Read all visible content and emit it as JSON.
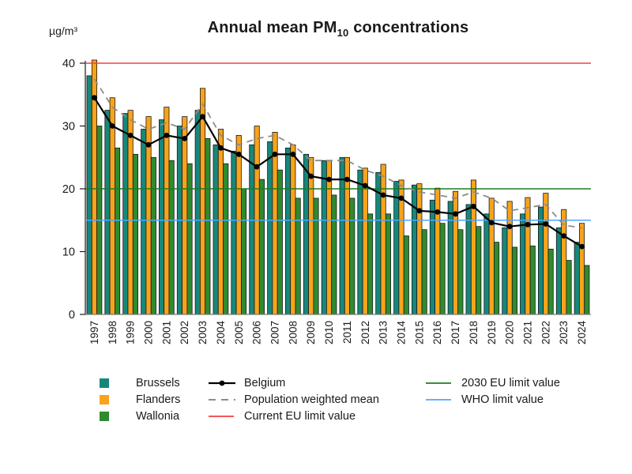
{
  "chart_data": {
    "type": "bar",
    "title": {
      "prefix": "Annual mean PM",
      "subscript": "10",
      "suffix": " concentrations"
    },
    "unit_label": "µg/m³",
    "ylim": [
      0,
      40
    ],
    "yticks": [
      0,
      10,
      20,
      30,
      40
    ],
    "grid": false,
    "legend_position": "bottom",
    "categories": [
      "1997",
      "1998",
      "1999",
      "2000",
      "2001",
      "2002",
      "2003",
      "2004",
      "2005",
      "2006",
      "2007",
      "2008",
      "2009",
      "2010",
      "2011",
      "2012",
      "2013",
      "2014",
      "2015",
      "2016",
      "2017",
      "2018",
      "2019",
      "2020",
      "2021",
      "2022",
      "2023",
      "2024"
    ],
    "series": [
      {
        "name": "Brussels",
        "color": "#17877B",
        "values": [
          38,
          32.5,
          32,
          29.5,
          31,
          30,
          32.5,
          27,
          26,
          27,
          27.5,
          26.5,
          25.5,
          24.5,
          25,
          23,
          22.6,
          21.2,
          20.6,
          18.2,
          18,
          17.5,
          16,
          13.8,
          16,
          17.1,
          13.8,
          11.5
        ]
      },
      {
        "name": "Flanders",
        "color": "#F8A31A",
        "values": [
          40.5,
          34.5,
          32.5,
          31.5,
          33,
          31.5,
          36,
          29.5,
          28.5,
          30,
          29,
          27,
          25,
          24.5,
          25,
          23.3,
          23.9,
          21.4,
          20.8,
          20.1,
          19.6,
          21.4,
          18.5,
          18,
          18.6,
          19.3,
          16.7,
          14.5
        ]
      },
      {
        "name": "Wallonia",
        "color": "#2E8B2E",
        "values": [
          30,
          26.5,
          25.5,
          25,
          24.5,
          24,
          28,
          24,
          20,
          21.5,
          23,
          18.5,
          18.5,
          19,
          18.5,
          16,
          16,
          12.5,
          13.5,
          14.5,
          13.5,
          14,
          11.5,
          10.7,
          10.9,
          10.4,
          8.6,
          7.8
        ]
      }
    ],
    "line_series": [
      {
        "name": "Belgium",
        "style": "solid-dot",
        "color": "#000000",
        "values": [
          34.5,
          30,
          28.5,
          27,
          28.5,
          28,
          31.5,
          26.5,
          25.5,
          23.5,
          25.5,
          25.5,
          22,
          21.5,
          21.5,
          20.5,
          19,
          18.5,
          16.5,
          16.3,
          16,
          17.2,
          14.6,
          14,
          14.3,
          14.4,
          12.5,
          10.8
        ]
      },
      {
        "name": "Population weighted mean",
        "style": "dashed",
        "color": "#8C8C8C",
        "values": [
          37.5,
          33,
          31,
          29.5,
          30.5,
          29.5,
          33.5,
          28.5,
          27,
          28,
          28.5,
          27,
          24.5,
          24.5,
          24.5,
          23,
          22,
          20.5,
          19.5,
          19,
          18.5,
          19.5,
          18.5,
          16.5,
          17,
          17.5,
          14.2,
          13.8
        ]
      }
    ],
    "limit_lines": [
      {
        "name": "Current EU limit value",
        "value": 40,
        "color": "#F04040"
      },
      {
        "name": "2030 EU limit value",
        "value": 20,
        "color": "#1E7B1E"
      },
      {
        "name": "WHO limit value",
        "value": 15,
        "color": "#4DA6FF"
      }
    ]
  }
}
